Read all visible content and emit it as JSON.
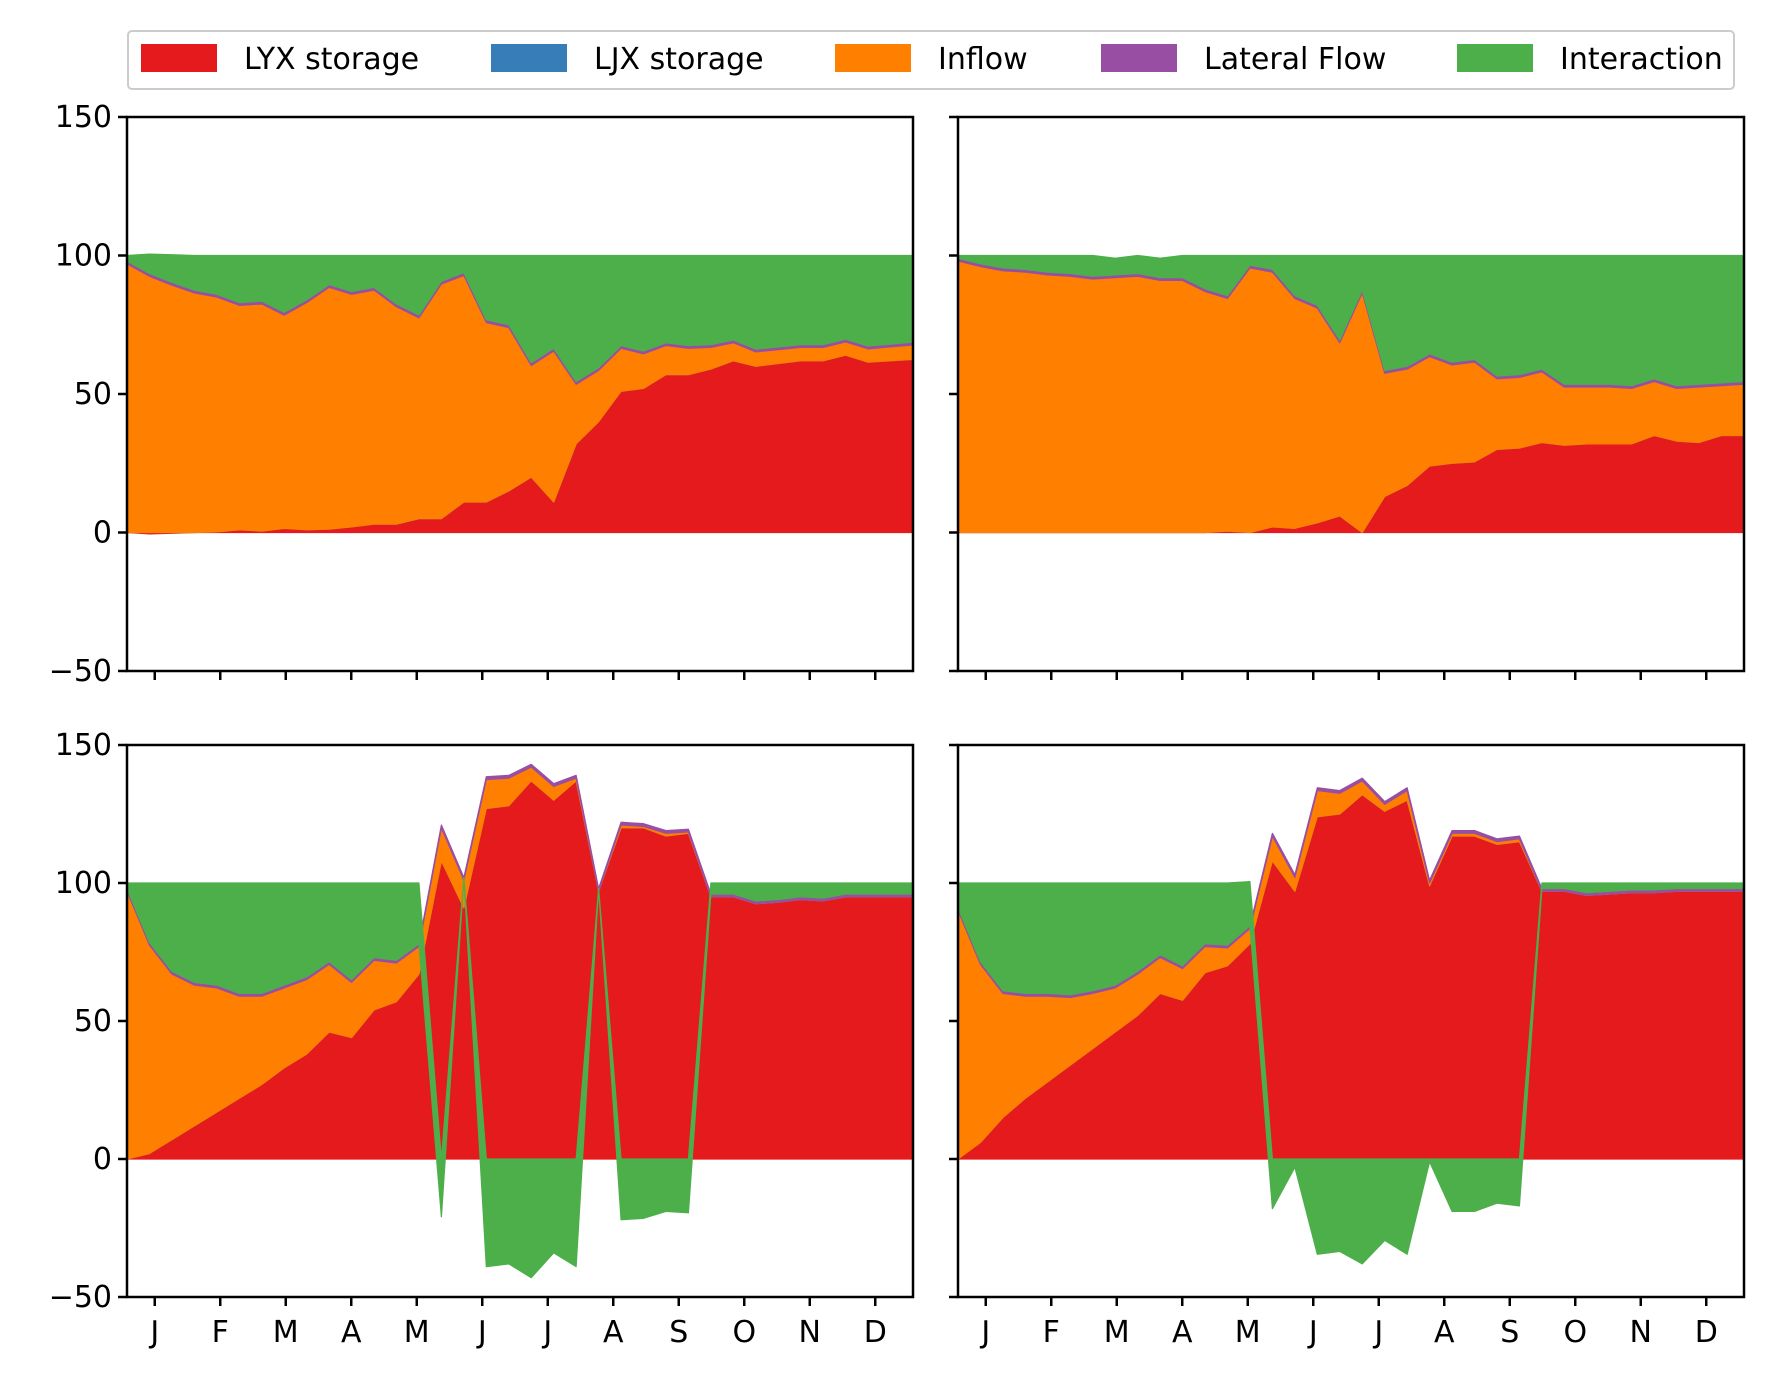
{
  "legend": {
    "items": [
      {
        "label": "LYX storage",
        "color": "#e41a1c"
      },
      {
        "label": "LJX storage",
        "color": "#377eb8"
      },
      {
        "label": "Inflow",
        "color": "#ff7f00"
      },
      {
        "label": "Lateral Flow",
        "color": "#984ea3"
      },
      {
        "label": "Interaction",
        "color": "#4daf4a"
      }
    ]
  },
  "chart_data": [
    {
      "type": "area",
      "panel": "top-left",
      "ylim": [
        -50,
        150
      ],
      "yticks": [
        -50,
        0,
        50,
        100,
        150
      ],
      "ytick_labels": [
        "−50",
        "0",
        "50",
        "100",
        "150"
      ],
      "month_labels": [
        "J",
        "F",
        "M",
        "A",
        "M",
        "J",
        "J",
        "A",
        "S",
        "O",
        "N",
        "D"
      ],
      "show_xticklabels": false,
      "show_yticklabels": true,
      "n_points": 36,
      "series": [
        {
          "name": "LYX storage",
          "values": [
            0,
            -0.5,
            -0.3,
            0,
            0.2,
            1,
            0.5,
            1.5,
            1,
            1.2,
            2,
            3,
            3,
            5,
            5,
            11,
            11,
            15,
            20,
            11,
            32,
            40,
            51,
            52,
            57,
            57,
            59,
            62,
            60,
            61,
            62,
            62,
            64,
            61.5,
            62,
            62.5
          ]
        },
        {
          "name": "LJX storage",
          "values": [
            0,
            0,
            0,
            0,
            0,
            0,
            0,
            0,
            0,
            0,
            0,
            0,
            0,
            0,
            0,
            0,
            0,
            0,
            0,
            0,
            0,
            0,
            0,
            0,
            0,
            0,
            0,
            0,
            0,
            0,
            0,
            0,
            0,
            0,
            0,
            0
          ]
        },
        {
          "name": "Inflow",
          "values": [
            97,
            92.5,
            89.3,
            86.5,
            84.8,
            81,
            82,
            77,
            82,
            87.3,
            84,
            84.5,
            78.5,
            72.5,
            84.7,
            81.8,
            64.8,
            59,
            40.3,
            54.5,
            21.5,
            18.5,
            15.5,
            12.5,
            10.5,
            9.5,
            7.8,
            6.5,
            5.2,
            5,
            4.8,
            4.8,
            4.8,
            4.8,
            5,
            5.2
          ]
        },
        {
          "name": "Lateral Flow",
          "values": [
            1,
            1,
            1,
            1,
            1,
            1,
            1,
            1,
            1,
            1,
            1,
            1,
            1,
            1,
            1,
            1,
            1,
            1,
            1,
            1,
            1,
            1,
            1,
            1,
            1,
            1,
            1,
            1,
            1,
            1,
            1,
            1,
            1,
            1,
            1,
            1
          ]
        },
        {
          "name": "Interaction",
          "values": [
            2,
            7,
            10,
            12.5,
            14,
            17,
            16.5,
            20.5,
            16,
            10.5,
            13,
            11.5,
            17.5,
            21.5,
            9.3,
            6.2,
            23.2,
            25,
            38.7,
            33.5,
            45.5,
            40.5,
            32.5,
            34.5,
            31.5,
            32.5,
            32.2,
            30.5,
            33.8,
            33,
            32.2,
            32.2,
            30.2,
            32.7,
            32,
            31.3
          ]
        }
      ]
    },
    {
      "type": "area",
      "panel": "top-right",
      "ylim": [
        -50,
        150
      ],
      "yticks": [
        -50,
        0,
        50,
        100,
        150
      ],
      "ytick_labels": [
        "−50",
        "0",
        "50",
        "100",
        "150"
      ],
      "month_labels": [
        "J",
        "F",
        "M",
        "A",
        "M",
        "J",
        "J",
        "A",
        "S",
        "O",
        "N",
        "D"
      ],
      "show_xticklabels": false,
      "show_yticklabels": false,
      "n_points": 36,
      "series": [
        {
          "name": "LYX storage",
          "values": [
            0,
            0,
            0,
            0,
            0,
            0,
            0,
            0,
            0,
            0,
            0,
            0,
            0.5,
            0,
            2,
            1.5,
            3.5,
            6,
            0,
            13,
            17,
            24,
            25,
            25.5,
            30,
            30.5,
            32.5,
            31.5,
            32,
            32,
            32,
            35,
            33,
            32.5,
            35,
            35
          ]
        },
        {
          "name": "LJX storage",
          "values": [
            0,
            0,
            0,
            0,
            0,
            0,
            0,
            0,
            0,
            0,
            0,
            0,
            0,
            0,
            0,
            0,
            0,
            0,
            0,
            0,
            0,
            0,
            0,
            0,
            0,
            0,
            0,
            0,
            0,
            0,
            0,
            0,
            0,
            0,
            0,
            0
          ]
        },
        {
          "name": "Inflow",
          "values": [
            98,
            96,
            94.5,
            94,
            93,
            92.5,
            91.5,
            92,
            92.5,
            91,
            91,
            87,
            84,
            95.5,
            92,
            83,
            77.5,
            62.5,
            86.5,
            44.5,
            42,
            39.5,
            35.5,
            36,
            25.5,
            25.5,
            25.5,
            21,
            20.5,
            20.5,
            20,
            19.5,
            19,
            20,
            18,
            18.5
          ]
        },
        {
          "name": "Lateral Flow",
          "values": [
            1,
            1,
            1,
            1,
            1,
            1,
            1,
            1,
            1,
            1,
            1,
            1,
            1,
            1,
            1,
            1,
            1,
            1,
            1,
            1,
            1,
            1,
            1,
            1,
            1,
            1,
            1,
            1,
            1,
            1,
            1,
            1,
            1,
            1,
            1,
            1
          ]
        },
        {
          "name": "Interaction",
          "values": [
            1,
            3,
            4.5,
            5,
            6,
            6.5,
            7.5,
            6,
            6.5,
            7,
            8,
            12,
            14.5,
            3.5,
            5,
            14.5,
            18,
            30.5,
            12.5,
            41.5,
            40,
            35.5,
            38.5,
            37.5,
            43.5,
            43,
            41,
            46.5,
            46.5,
            46.5,
            47,
            44.5,
            47,
            46.5,
            46,
            45.5
          ]
        }
      ]
    },
    {
      "type": "area",
      "panel": "bottom-left",
      "ylim": [
        -50,
        150
      ],
      "yticks": [
        -50,
        0,
        50,
        100,
        150
      ],
      "ytick_labels": [
        "−50",
        "0",
        "50",
        "100",
        "150"
      ],
      "month_labels": [
        "J",
        "F",
        "M",
        "A",
        "M",
        "J",
        "J",
        "A",
        "S",
        "O",
        "N",
        "D"
      ],
      "show_xticklabels": true,
      "show_yticklabels": true,
      "n_points": 36,
      "series": [
        {
          "name": "LYX storage",
          "values": [
            0,
            2,
            7,
            12,
            17,
            22,
            27,
            33,
            38,
            46,
            44,
            54,
            57,
            67,
            108,
            91,
            127,
            128,
            137,
            130,
            137,
            97,
            120,
            120,
            117,
            118,
            95,
            95,
            92.5,
            93,
            94,
            93.5,
            95,
            95,
            95,
            95
          ]
        },
        {
          "name": "LJX storage",
          "values": [
            0,
            0,
            0,
            0,
            0,
            0,
            0,
            0,
            0,
            0,
            0,
            0,
            0,
            0,
            0,
            0,
            0,
            0,
            0,
            0,
            0,
            0,
            0,
            0,
            0,
            0,
            0,
            0,
            0,
            0,
            0,
            0,
            0,
            0,
            0,
            0
          ]
        },
        {
          "name": "Inflow",
          "values": [
            97,
            75.5,
            60,
            51,
            45,
            37,
            32,
            29,
            27,
            24.5,
            20,
            18,
            14,
            10,
            12,
            10,
            10.5,
            10,
            5,
            5,
            1,
            0,
            1,
            0.5,
            1,
            0.5,
            0,
            0,
            0,
            0,
            0,
            0,
            0,
            0,
            0,
            0
          ]
        },
        {
          "name": "Lateral Flow",
          "values": [
            1,
            1,
            1,
            1,
            1,
            1,
            1,
            1,
            1,
            1,
            1,
            1,
            1,
            1,
            1,
            1,
            1,
            1,
            1,
            1,
            1,
            1,
            1,
            1,
            1,
            1,
            1,
            1,
            1,
            1,
            1,
            1,
            1,
            1,
            1,
            1
          ]
        },
        {
          "name": "Interaction",
          "values": [
            2,
            21.5,
            32,
            36,
            37,
            40,
            40,
            37,
            34,
            28.5,
            35,
            27,
            28,
            22,
            -21,
            0,
            -39,
            -38,
            -43,
            -34,
            -39,
            0,
            -22,
            -21.5,
            -19,
            -19.5,
            4,
            4,
            6.5,
            6,
            5,
            5.5,
            4,
            4,
            4,
            4
          ]
        }
      ]
    },
    {
      "type": "area",
      "panel": "bottom-right",
      "ylim": [
        -50,
        150
      ],
      "yticks": [
        -50,
        0,
        50,
        100,
        150
      ],
      "ytick_labels": [
        "−50",
        "0",
        "50",
        "100",
        "150"
      ],
      "month_labels": [
        "J",
        "F",
        "M",
        "A",
        "M",
        "J",
        "J",
        "A",
        "S",
        "O",
        "N",
        "D"
      ],
      "show_xticklabels": true,
      "show_yticklabels": false,
      "n_points": 36,
      "series": [
        {
          "name": "LYX storage",
          "values": [
            0,
            6,
            15,
            22,
            28,
            34,
            40,
            46,
            52,
            60,
            57.5,
            67.5,
            70,
            78,
            108,
            97,
            124,
            125,
            132,
            126,
            130,
            99,
            117,
            117,
            114,
            115,
            97,
            97,
            95.5,
            96,
            96.5,
            96.5,
            97,
            97,
            97,
            97
          ]
        },
        {
          "name": "LJX storage",
          "values": [
            0,
            0,
            0,
            0,
            0,
            0,
            0,
            0,
            0,
            0,
            0,
            0,
            0,
            0,
            0,
            0,
            0,
            0,
            0,
            0,
            0,
            0,
            0,
            0,
            0,
            0,
            0,
            0,
            0,
            0,
            0,
            0,
            0,
            0,
            0,
            0
          ]
        },
        {
          "name": "Inflow",
          "values": [
            90,
            64.5,
            45,
            37,
            31,
            24.5,
            20,
            16,
            15,
            13,
            11.5,
            9.5,
            6.5,
            5.5,
            9,
            5,
            9.5,
            7.5,
            5,
            2.5,
            3.5,
            1,
            1,
            1,
            1,
            1,
            0,
            0,
            0,
            0,
            0,
            0,
            0,
            0,
            0,
            0
          ]
        },
        {
          "name": "Lateral Flow",
          "values": [
            1,
            1,
            1,
            1,
            1,
            1,
            1,
            1,
            1,
            1,
            1,
            1,
            1,
            1,
            1,
            1,
            1,
            1,
            1,
            1,
            1,
            1,
            1,
            1,
            1,
            1,
            1,
            1,
            1,
            1,
            1,
            1,
            1,
            1,
            1,
            1
          ]
        },
        {
          "name": "Interaction",
          "values": [
            9,
            28.5,
            39,
            40,
            40,
            40.5,
            39,
            37,
            32,
            26,
            30,
            22,
            22.5,
            16,
            -18,
            -3,
            -34.5,
            -33.5,
            -38,
            -29.5,
            -34.5,
            -1,
            -19,
            -19,
            -16,
            -17,
            2,
            2,
            3.5,
            3,
            2.5,
            2.5,
            2,
            2,
            2,
            2
          ]
        }
      ]
    }
  ]
}
